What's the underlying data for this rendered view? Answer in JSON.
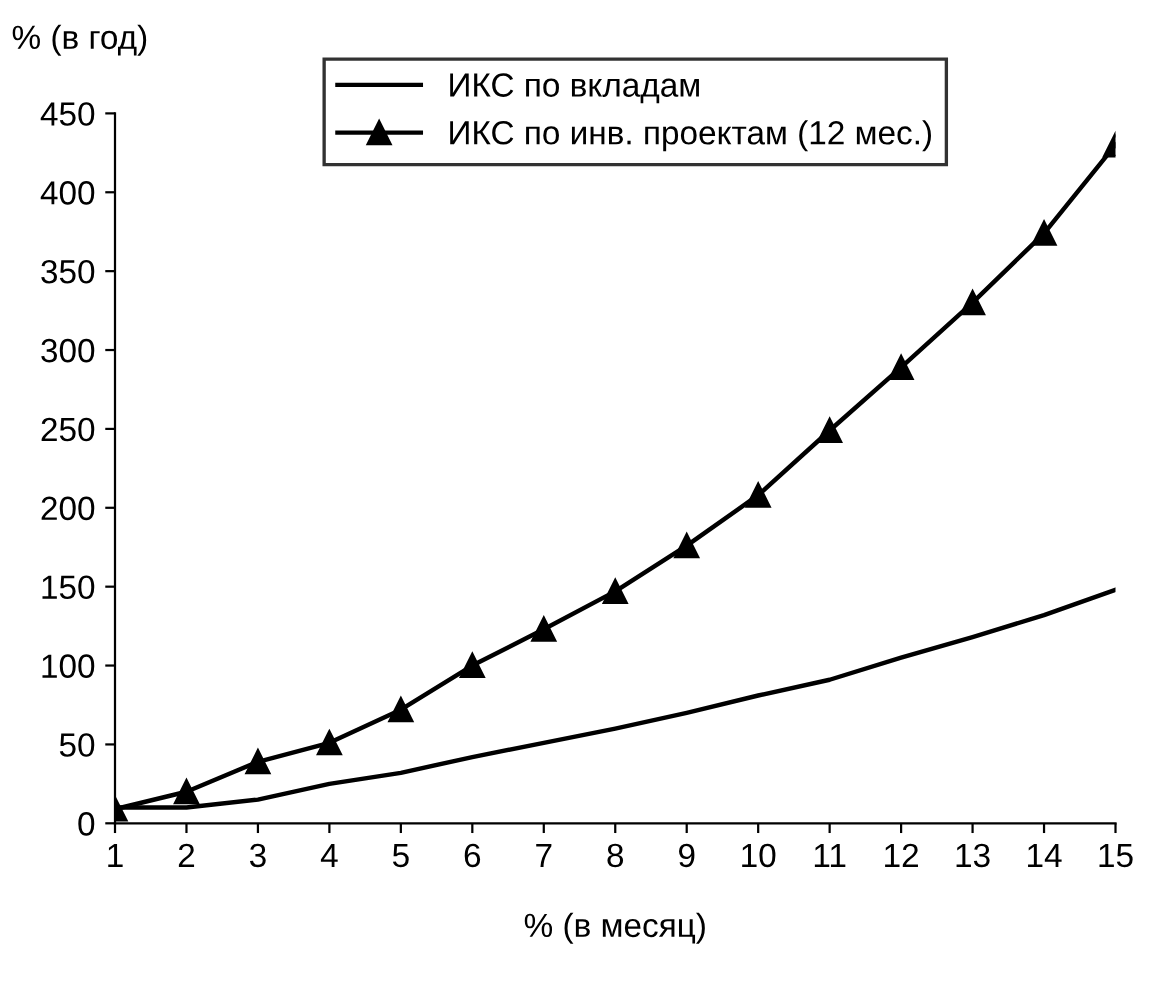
{
  "chart_data": {
    "type": "line",
    "xlabel": "% (в месяц)",
    "ylabel": "% (в год)",
    "x": [
      1,
      2,
      3,
      4,
      5,
      6,
      7,
      8,
      9,
      10,
      11,
      12,
      13,
      14,
      15
    ],
    "xlim": [
      1,
      15
    ],
    "xticks": [
      1,
      2,
      3,
      4,
      5,
      6,
      7,
      8,
      9,
      10,
      11,
      12,
      13,
      14,
      15
    ],
    "ylim": [
      0,
      450
    ],
    "yticks": [
      0,
      50,
      100,
      150,
      200,
      250,
      300,
      350,
      400,
      450
    ],
    "grid": false,
    "legend": "top",
    "series": [
      {
        "name": "ИКС по вкладам",
        "color": "#000000",
        "marker": "none",
        "values": [
          10,
          10,
          15,
          25,
          32,
          42,
          51,
          60,
          70,
          81,
          91,
          105,
          118,
          132,
          148
        ]
      },
      {
        "name": "ИКС по инв. проектам (12 мес.)",
        "color": "#000000",
        "marker": "triangle",
        "values": [
          9,
          20,
          39,
          51,
          72,
          100,
          123,
          147,
          176,
          208,
          249,
          289,
          330,
          374,
          430
        ]
      }
    ]
  }
}
